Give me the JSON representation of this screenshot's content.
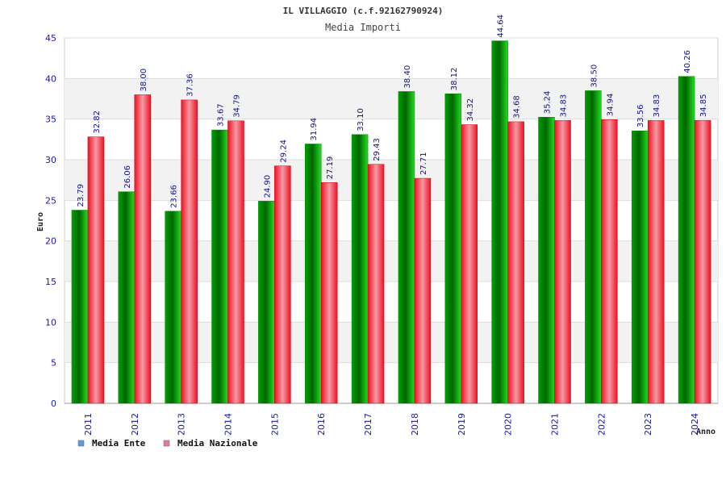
{
  "chart_data": {
    "type": "bar",
    "title": "IL VILLAGGIO (c.f.92162790924)",
    "subtitle": "Media Importi",
    "xlabel": "Anno",
    "ylabel": "Euro",
    "ylim": [
      0,
      45
    ],
    "yticks": [
      0,
      5,
      10,
      15,
      20,
      25,
      30,
      35,
      40,
      45
    ],
    "grid": true,
    "legend_position": "bottom-left",
    "categories": [
      "2011",
      "2012",
      "2013",
      "2014",
      "2015",
      "2016",
      "2017",
      "2018",
      "2019",
      "2020",
      "2021",
      "2022",
      "2023",
      "2024"
    ],
    "series": [
      {
        "name": "Media Ente",
        "color": "#00bb00",
        "legend_color": "#5b9bd5",
        "values": [
          23.79,
          26.06,
          23.66,
          33.67,
          24.9,
          31.94,
          33.1,
          38.4,
          38.12,
          44.64,
          35.24,
          38.5,
          33.56,
          40.26
        ],
        "labels": [
          "23.79",
          "26.06",
          "23.66",
          "33.67",
          "24.90",
          "31.94",
          "33.10",
          "38.40",
          "38.12",
          "44.64",
          "35.24",
          "38.50",
          "33.56",
          "40.26"
        ]
      },
      {
        "name": "Media Nazionale",
        "color": "#ee1122",
        "legend_color": "#e07aa8",
        "values": [
          32.82,
          38.0,
          37.36,
          34.79,
          29.24,
          27.19,
          29.43,
          27.71,
          34.32,
          34.68,
          34.83,
          34.94,
          34.83,
          34.85
        ],
        "labels": [
          "32.82",
          "38.00",
          "37.36",
          "34.79",
          "29.24",
          "27.19",
          "29.43",
          "27.71",
          "34.32",
          "34.68",
          "34.83",
          "34.94",
          "34.83",
          "34.85"
        ]
      }
    ]
  }
}
